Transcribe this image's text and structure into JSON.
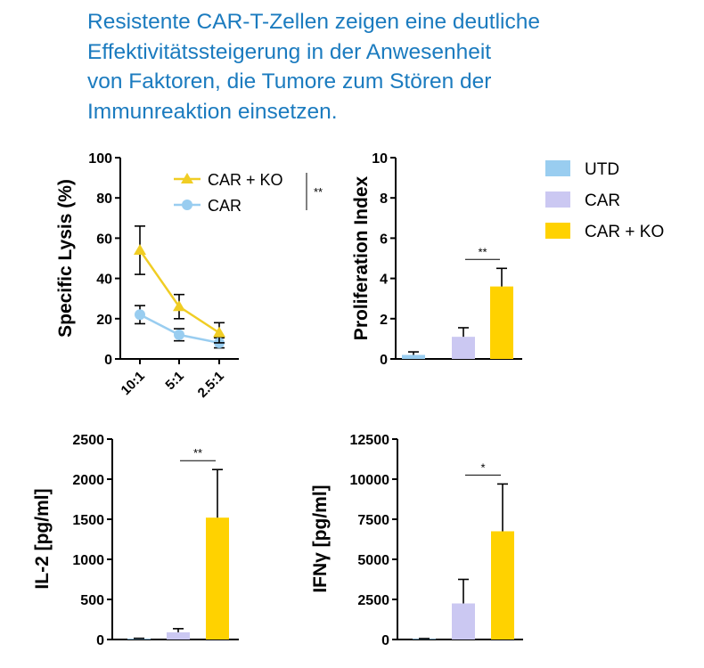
{
  "heading": {
    "lines": [
      "Resistente CAR-T-Zellen zeigen eine deutliche",
      "Effektivitätssteigerung in der Anwesenheit",
      "von Faktoren, die Tumore zum Stören der",
      "Immunreaktion einsetzen."
    ]
  },
  "colors": {
    "heading": "#1b7bbf",
    "UTD": "#99cdf0",
    "CAR": "#cbc8f2",
    "CAR + KO": "#ffd200",
    "car_line": "#99cdf0",
    "carko_line": "#f0cd24",
    "axis": "#000000"
  },
  "legend": {
    "entries": [
      {
        "label": "UTD",
        "color": "#99cdf0"
      },
      {
        "label": "CAR",
        "color": "#cbc8f2"
      },
      {
        "label": "CAR + KO",
        "color": "#ffd200"
      }
    ]
  },
  "chart_data": [
    {
      "id": "lysis",
      "type": "line",
      "ylabel": "Specific Lysis (%)",
      "ylim": [
        0,
        100
      ],
      "yticks": [
        "0",
        "20",
        "40",
        "60",
        "80",
        "100"
      ],
      "categories": [
        "10:1",
        "5:1",
        "2.5:1"
      ],
      "series": [
        {
          "name": "CAR + KO",
          "marker": "triangle",
          "values": [
            54,
            26,
            13
          ],
          "errors": [
            12,
            6,
            5
          ]
        },
        {
          "name": "CAR",
          "marker": "circle",
          "values": [
            22,
            12,
            8
          ],
          "errors": [
            4.5,
            3,
            2.5
          ]
        }
      ],
      "significance": "**",
      "grid": false
    },
    {
      "id": "proliferation",
      "type": "bar",
      "ylabel": "Proliferation Index",
      "ylim": [
        0,
        10
      ],
      "yticks": [
        "0",
        "2",
        "4",
        "6",
        "8",
        "10"
      ],
      "categories": [
        "UTD",
        "CAR",
        "CAR + KO"
      ],
      "values": [
        0.2,
        1.1,
        3.6
      ],
      "errors": [
        0.15,
        0.45,
        0.9
      ],
      "significance": "**",
      "grid": false
    },
    {
      "id": "il2",
      "type": "bar",
      "ylabel": "IL-2  [pg/ml]",
      "ylim": [
        0,
        2500
      ],
      "yticks": [
        "0",
        "500",
        "1000",
        "1500",
        "2000",
        "2500"
      ],
      "categories": [
        "UTD",
        "CAR",
        "CAR + KO"
      ],
      "values": [
        10,
        90,
        1520
      ],
      "errors": [
        5,
        45,
        600
      ],
      "significance": "**",
      "grid": false
    },
    {
      "id": "ifng",
      "type": "bar",
      "ylabel": "IFNγ [pg/ml]",
      "ylim": [
        0,
        12500
      ],
      "yticks": [
        "0",
        "2500",
        "5000",
        "7500",
        "10000",
        "12500"
      ],
      "categories": [
        "UTD",
        "CAR",
        "CAR + KO"
      ],
      "values": [
        40,
        2250,
        6750
      ],
      "errors": [
        20,
        1500,
        2950
      ],
      "significance": "*",
      "grid": false
    }
  ]
}
